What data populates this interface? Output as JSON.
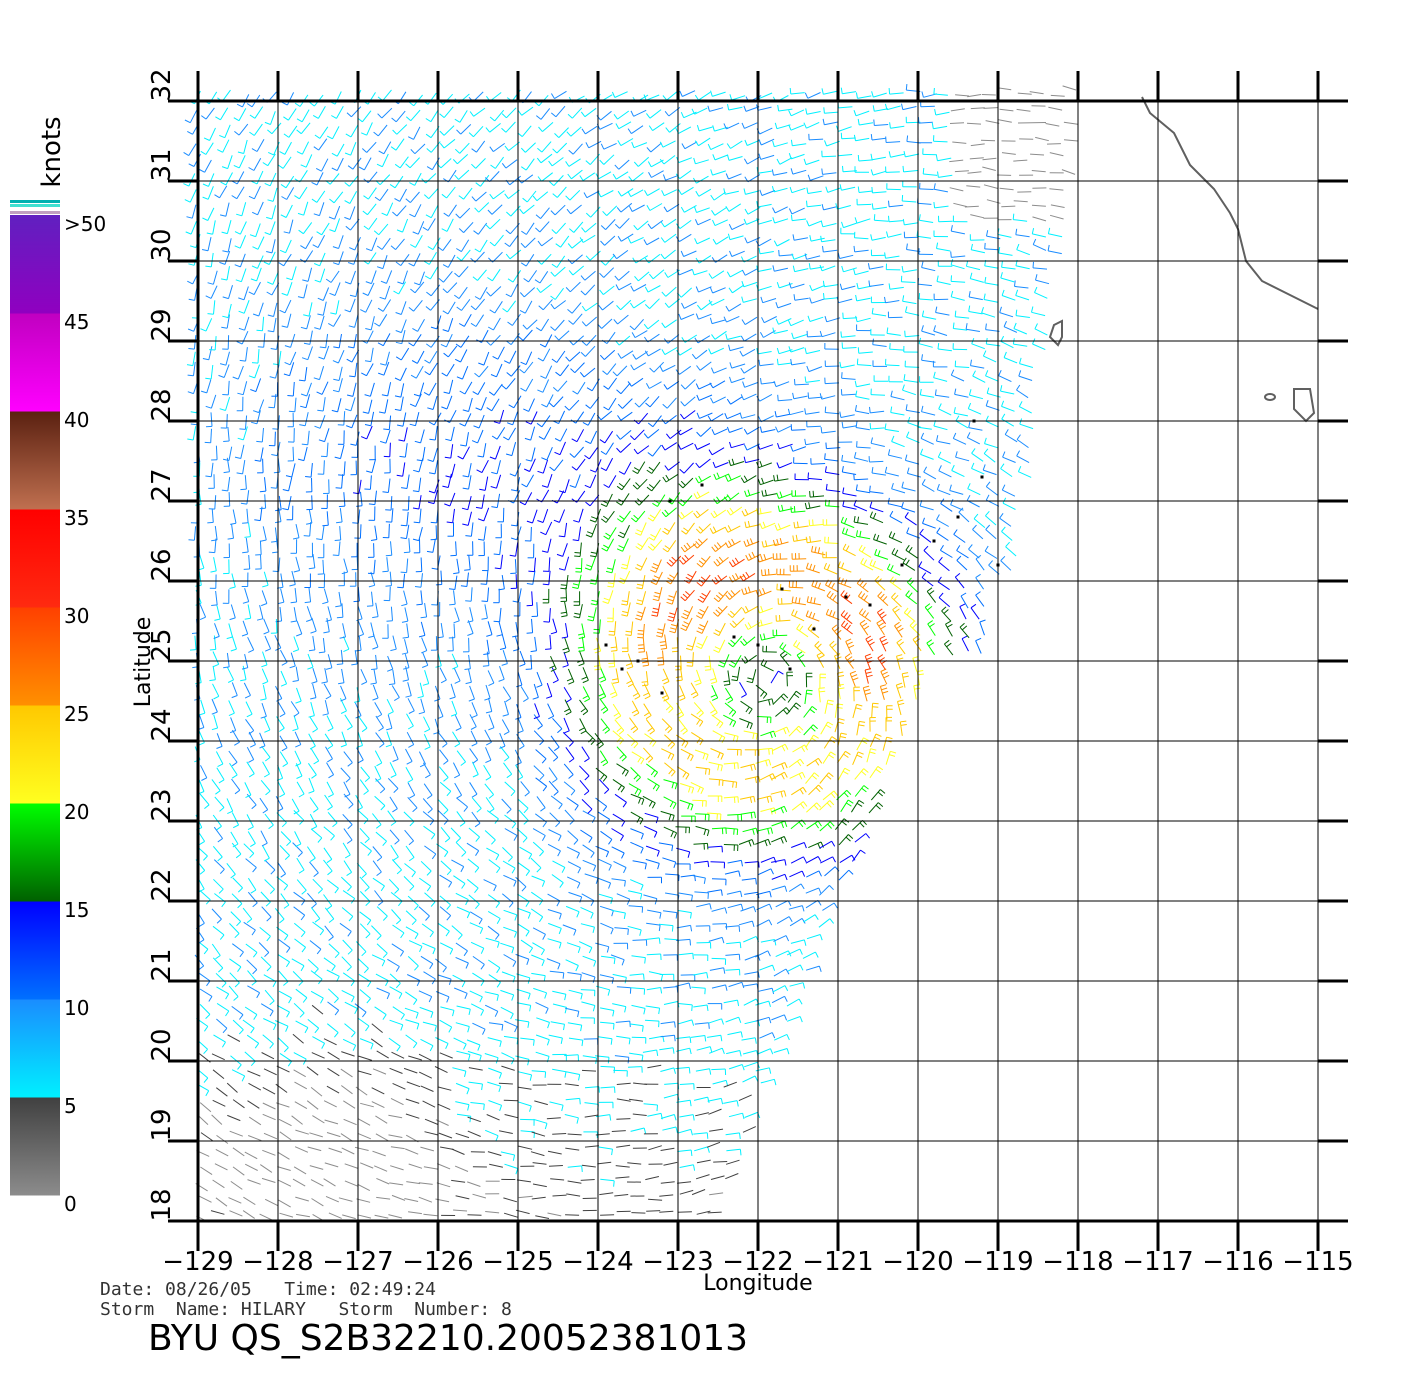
{
  "map": {
    "x_axis_label": "Longitude",
    "y_axis_label": "Latitude",
    "lon_range": [
      -129,
      -115
    ],
    "lat_range": [
      18,
      32
    ],
    "lon_ticks": [
      "−129",
      "−128",
      "−127",
      "−126",
      "−125",
      "−124",
      "−123",
      "−122",
      "−121",
      "−120",
      "−119",
      "−118",
      "−117",
      "−116",
      "−115"
    ],
    "lat_ticks": [
      "18",
      "19",
      "20",
      "21",
      "22",
      "23",
      "24",
      "25",
      "26",
      "27",
      "28",
      "29",
      "30",
      "31",
      "32"
    ],
    "storm_center": {
      "lon": -121.9,
      "lat": 24.8
    },
    "coastline_color": "#606060",
    "grid_color": "#000000"
  },
  "legend": {
    "title": "knots",
    "labels": [
      {
        "value": 50,
        "text": ">50"
      },
      {
        "value": 45,
        "text": "45"
      },
      {
        "value": 40,
        "text": "40"
      },
      {
        "value": 35,
        "text": "35"
      },
      {
        "value": 30,
        "text": "30"
      },
      {
        "value": 25,
        "text": "25"
      },
      {
        "value": 20,
        "text": "20"
      },
      {
        "value": 15,
        "text": "15"
      },
      {
        "value": 10,
        "text": "10"
      },
      {
        "value": 5,
        "text": "5"
      },
      {
        "value": 0,
        "text": "0"
      }
    ],
    "bands": [
      {
        "from": 0,
        "to": 5,
        "top": "#404040",
        "bottom": "#8c8c8c"
      },
      {
        "from": 5,
        "to": 10,
        "top": "#1a8cff",
        "bottom": "#00f0ff"
      },
      {
        "from": 10,
        "to": 15,
        "top": "#0000ff",
        "bottom": "#0070ff"
      },
      {
        "from": 15,
        "to": 20,
        "top": "#00ff00",
        "bottom": "#006000"
      },
      {
        "from": 20,
        "to": 25,
        "top": "#ffc800",
        "bottom": "#ffff20"
      },
      {
        "from": 25,
        "to": 30,
        "top": "#ff4000",
        "bottom": "#ff9000"
      },
      {
        "from": 30,
        "to": 35,
        "top": "#ff0000",
        "bottom": "#ff2a10"
      },
      {
        "from": 35,
        "to": 40,
        "top": "#5a2010",
        "bottom": "#c07050"
      },
      {
        "from": 40,
        "to": 45,
        "top": "#c000c0",
        "bottom": "#ff00ff"
      },
      {
        "from": 45,
        "to": 50,
        "top": "#6020c0",
        "bottom": "#9000c0"
      }
    ]
  },
  "footer": {
    "date_label": "Date:",
    "date": "08/26/05",
    "time_label": "Time:",
    "time": "02:49:24",
    "storm_name_label": "Storm  Name:",
    "storm_name": "HILARY",
    "storm_number_label": "Storm  Number:",
    "storm_number": "8",
    "title": "BYU  QS_S2B32210.20052381013"
  }
}
